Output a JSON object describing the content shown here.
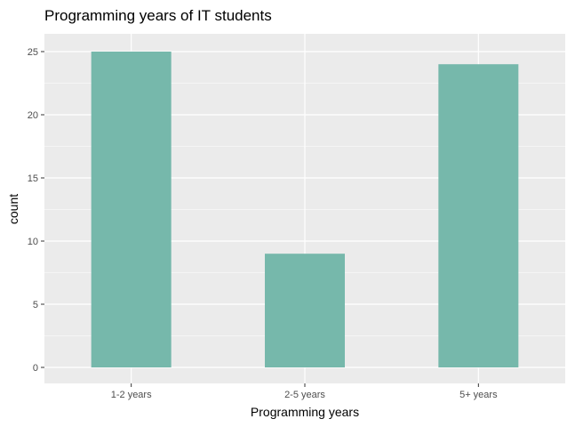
{
  "chart_data": {
    "type": "bar",
    "title": "Programming years of IT students",
    "xlabel": "Programming years",
    "ylabel": "count",
    "categories": [
      "1-2 years",
      "2-5 years",
      "5+ years"
    ],
    "values": [
      25,
      9,
      24
    ],
    "ylim": [
      0,
      26
    ],
    "yticks": [
      0,
      5,
      10,
      15,
      20,
      25
    ],
    "ytick_labels": [
      "0",
      "5",
      "10",
      "15",
      "20",
      "25"
    ],
    "grid": true,
    "legend": "none",
    "colors": {
      "bar": "#76b8ab",
      "panel": "#ebebeb",
      "grid": "#ffffff",
      "tick_text": "#4d4d4d"
    }
  }
}
